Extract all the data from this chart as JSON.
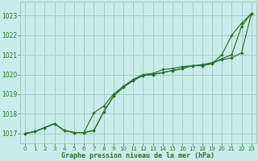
{
  "background_color": "#c8ede8",
  "grid_color": "#a0ccc8",
  "line_color": "#2d6e2d",
  "xlabel": "Graphe pression niveau de la mer (hPa)",
  "xlim": [
    -0.5,
    23.5
  ],
  "ylim": [
    1016.5,
    1023.7
  ],
  "yticks": [
    1017,
    1018,
    1019,
    1020,
    1021,
    1022,
    1023
  ],
  "xticks": [
    0,
    1,
    2,
    3,
    4,
    5,
    6,
    7,
    8,
    9,
    10,
    11,
    12,
    13,
    14,
    15,
    16,
    17,
    18,
    19,
    20,
    21,
    22,
    23
  ],
  "series": [
    [
      1017.0,
      1017.1,
      1017.3,
      1017.5,
      1017.15,
      1017.05,
      1017.05,
      1017.15,
      1018.1,
      1018.9,
      1019.35,
      1019.7,
      1019.95,
      1020.0,
      1020.1,
      1020.2,
      1020.3,
      1020.45,
      1020.45,
      1020.55,
      1021.0,
      1022.0,
      1022.6,
      1023.1
    ],
    [
      1017.0,
      1017.1,
      1017.3,
      1017.5,
      1017.15,
      1017.05,
      1017.05,
      1018.05,
      1018.4,
      1019.0,
      1019.4,
      1019.75,
      1020.0,
      1020.05,
      1020.25,
      1020.3,
      1020.4,
      1020.45,
      1020.5,
      1020.6,
      1020.75,
      1020.85,
      1021.1,
      1023.1
    ],
    [
      1017.0,
      1017.1,
      1017.3,
      1017.5,
      1017.15,
      1017.05,
      1017.05,
      1017.15,
      1018.1,
      1018.9,
      1019.35,
      1019.7,
      1019.95,
      1020.0,
      1020.1,
      1020.2,
      1020.3,
      1020.45,
      1020.45,
      1020.55,
      1020.8,
      1021.0,
      1022.45,
      1023.1
    ]
  ],
  "figsize": [
    3.2,
    2.0
  ],
  "dpi": 100
}
